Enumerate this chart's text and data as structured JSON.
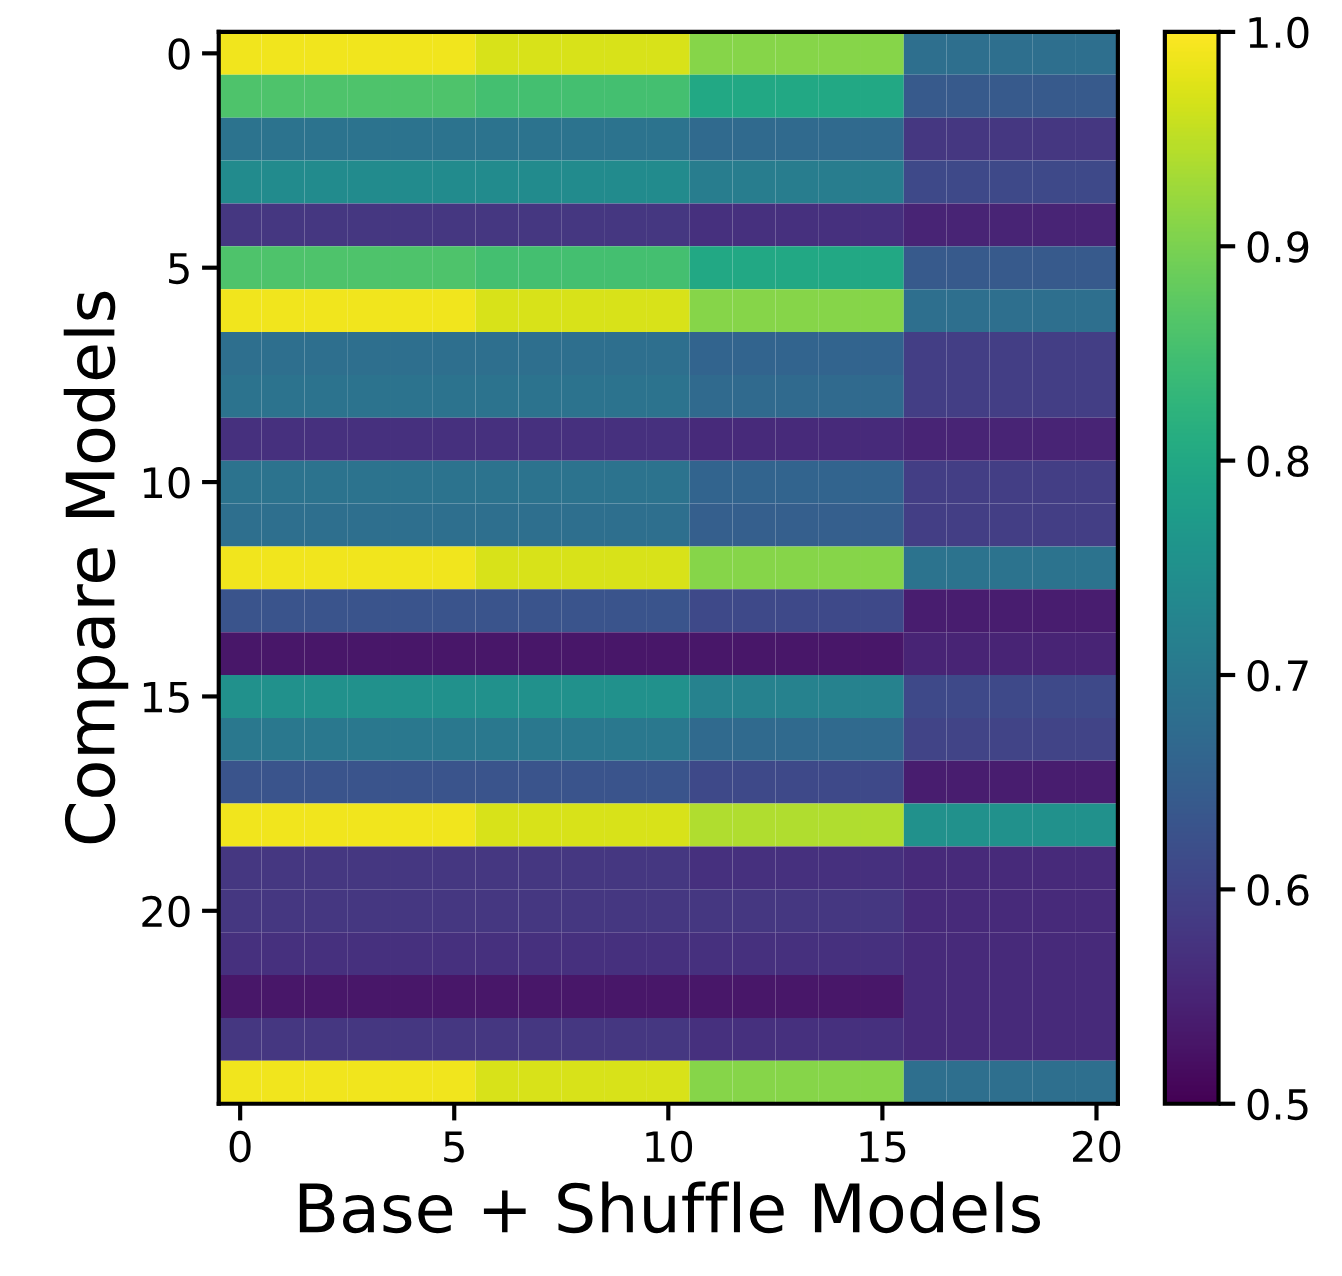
{
  "chart_data": {
    "type": "heatmap",
    "xlabel": "Base + Shuffle Models",
    "ylabel": "Compare Models",
    "categories": [
      "0",
      null,
      null,
      null,
      null,
      "5",
      null,
      null,
      null,
      null,
      "10",
      null,
      null,
      null,
      null,
      "15",
      null,
      null,
      null,
      null,
      "20"
    ],
    "y_categories": [
      "0",
      null,
      null,
      null,
      null,
      "5",
      null,
      null,
      null,
      null,
      "10",
      null,
      null,
      null,
      null,
      "15",
      null,
      null,
      null,
      null,
      "20",
      null,
      null,
      null,
      null
    ],
    "clim": [
      0.5,
      1.0
    ],
    "cticks": [
      0.5,
      0.6,
      0.7,
      0.8,
      0.9,
      {
        "value": 1,
        "label": "1.0"
      }
    ],
    "cells": [
      [
        0.99,
        0.99,
        0.99,
        0.99,
        0.99,
        0.99,
        0.97,
        0.97,
        0.97,
        0.97,
        0.97,
        0.91,
        0.91,
        0.91,
        0.91,
        0.91,
        0.68,
        0.68,
        0.68,
        0.68,
        0.68
      ],
      [
        0.86,
        0.86,
        0.86,
        0.86,
        0.86,
        0.86,
        0.85,
        0.85,
        0.85,
        0.85,
        0.85,
        0.8,
        0.8,
        0.8,
        0.8,
        0.8,
        0.64,
        0.64,
        0.64,
        0.64,
        0.64
      ],
      [
        0.69,
        0.69,
        0.69,
        0.69,
        0.69,
        0.69,
        0.69,
        0.69,
        0.69,
        0.69,
        0.69,
        0.67,
        0.67,
        0.67,
        0.67,
        0.67,
        0.58,
        0.58,
        0.58,
        0.58,
        0.58
      ],
      [
        0.74,
        0.74,
        0.74,
        0.74,
        0.74,
        0.74,
        0.74,
        0.74,
        0.74,
        0.74,
        0.74,
        0.71,
        0.71,
        0.71,
        0.71,
        0.71,
        0.61,
        0.61,
        0.61,
        0.61,
        0.61
      ],
      [
        0.58,
        0.58,
        0.58,
        0.58,
        0.58,
        0.58,
        0.58,
        0.58,
        0.58,
        0.58,
        0.58,
        0.57,
        0.57,
        0.57,
        0.57,
        0.57,
        0.55,
        0.55,
        0.55,
        0.55,
        0.55
      ],
      [
        0.86,
        0.86,
        0.86,
        0.86,
        0.86,
        0.86,
        0.85,
        0.85,
        0.85,
        0.85,
        0.85,
        0.8,
        0.8,
        0.8,
        0.8,
        0.8,
        0.64,
        0.64,
        0.64,
        0.64,
        0.64
      ],
      [
        0.99,
        0.99,
        0.99,
        0.99,
        0.99,
        0.99,
        0.97,
        0.97,
        0.97,
        0.97,
        0.97,
        0.91,
        0.91,
        0.91,
        0.91,
        0.91,
        0.68,
        0.68,
        0.68,
        0.68,
        0.68
      ],
      [
        0.68,
        0.68,
        0.68,
        0.68,
        0.68,
        0.68,
        0.68,
        0.68,
        0.68,
        0.68,
        0.68,
        0.66,
        0.66,
        0.66,
        0.66,
        0.66,
        0.59,
        0.59,
        0.59,
        0.59,
        0.59
      ],
      [
        0.69,
        0.69,
        0.69,
        0.69,
        0.69,
        0.69,
        0.69,
        0.69,
        0.69,
        0.69,
        0.69,
        0.67,
        0.67,
        0.67,
        0.67,
        0.67,
        0.59,
        0.59,
        0.59,
        0.59,
        0.59
      ],
      [
        0.57,
        0.57,
        0.57,
        0.57,
        0.57,
        0.57,
        0.57,
        0.57,
        0.57,
        0.57,
        0.57,
        0.56,
        0.56,
        0.56,
        0.56,
        0.56,
        0.55,
        0.55,
        0.55,
        0.55,
        0.55
      ],
      [
        0.69,
        0.69,
        0.69,
        0.69,
        0.69,
        0.69,
        0.69,
        0.69,
        0.69,
        0.69,
        0.69,
        0.66,
        0.66,
        0.66,
        0.66,
        0.66,
        0.59,
        0.59,
        0.59,
        0.59,
        0.59
      ],
      [
        0.68,
        0.68,
        0.68,
        0.68,
        0.68,
        0.68,
        0.68,
        0.68,
        0.68,
        0.68,
        0.68,
        0.65,
        0.65,
        0.65,
        0.65,
        0.65,
        0.59,
        0.59,
        0.59,
        0.59,
        0.59
      ],
      [
        0.99,
        0.99,
        0.99,
        0.99,
        0.99,
        0.99,
        0.97,
        0.97,
        0.97,
        0.97,
        0.97,
        0.91,
        0.91,
        0.91,
        0.91,
        0.91,
        0.69,
        0.69,
        0.69,
        0.69,
        0.69
      ],
      [
        0.63,
        0.63,
        0.63,
        0.63,
        0.63,
        0.63,
        0.63,
        0.63,
        0.63,
        0.63,
        0.63,
        0.61,
        0.61,
        0.61,
        0.61,
        0.61,
        0.54,
        0.54,
        0.54,
        0.54,
        0.54
      ],
      [
        0.53,
        0.53,
        0.53,
        0.53,
        0.53,
        0.53,
        0.53,
        0.53,
        0.53,
        0.53,
        0.53,
        0.53,
        0.53,
        0.53,
        0.53,
        0.53,
        0.55,
        0.55,
        0.55,
        0.55,
        0.55
      ],
      [
        0.75,
        0.75,
        0.75,
        0.75,
        0.75,
        0.75,
        0.75,
        0.75,
        0.75,
        0.75,
        0.75,
        0.72,
        0.72,
        0.72,
        0.72,
        0.72,
        0.61,
        0.61,
        0.61,
        0.61,
        0.61
      ],
      [
        0.7,
        0.7,
        0.7,
        0.7,
        0.7,
        0.7,
        0.7,
        0.7,
        0.7,
        0.7,
        0.7,
        0.67,
        0.67,
        0.67,
        0.67,
        0.67,
        0.6,
        0.6,
        0.6,
        0.6,
        0.6
      ],
      [
        0.63,
        0.63,
        0.63,
        0.63,
        0.63,
        0.63,
        0.63,
        0.63,
        0.63,
        0.63,
        0.63,
        0.61,
        0.61,
        0.61,
        0.61,
        0.61,
        0.54,
        0.54,
        0.54,
        0.54,
        0.54
      ],
      [
        0.99,
        0.99,
        0.99,
        0.99,
        0.99,
        0.99,
        0.97,
        0.97,
        0.97,
        0.97,
        0.97,
        0.94,
        0.94,
        0.94,
        0.94,
        0.94,
        0.75,
        0.75,
        0.75,
        0.75,
        0.75
      ],
      [
        0.58,
        0.58,
        0.58,
        0.58,
        0.58,
        0.58,
        0.58,
        0.58,
        0.58,
        0.58,
        0.58,
        0.57,
        0.57,
        0.57,
        0.57,
        0.57,
        0.56,
        0.56,
        0.56,
        0.56,
        0.56
      ],
      [
        0.58,
        0.58,
        0.58,
        0.58,
        0.58,
        0.58,
        0.58,
        0.58,
        0.58,
        0.58,
        0.58,
        0.58,
        0.58,
        0.58,
        0.58,
        0.58,
        0.56,
        0.56,
        0.56,
        0.56,
        0.56
      ],
      [
        0.57,
        0.57,
        0.57,
        0.57,
        0.57,
        0.57,
        0.57,
        0.57,
        0.57,
        0.57,
        0.57,
        0.57,
        0.57,
        0.57,
        0.57,
        0.57,
        0.56,
        0.56,
        0.56,
        0.56,
        0.56
      ],
      [
        0.53,
        0.53,
        0.53,
        0.53,
        0.53,
        0.53,
        0.53,
        0.53,
        0.53,
        0.53,
        0.53,
        0.53,
        0.53,
        0.53,
        0.53,
        0.53,
        0.56,
        0.56,
        0.56,
        0.56,
        0.56
      ],
      [
        0.58,
        0.58,
        0.58,
        0.58,
        0.58,
        0.58,
        0.58,
        0.58,
        0.58,
        0.58,
        0.58,
        0.57,
        0.57,
        0.57,
        0.57,
        0.57,
        0.56,
        0.56,
        0.56,
        0.56,
        0.56
      ],
      [
        0.99,
        0.99,
        0.99,
        0.99,
        0.99,
        0.99,
        0.97,
        0.97,
        0.97,
        0.97,
        0.97,
        0.91,
        0.91,
        0.91,
        0.91,
        0.91,
        0.68,
        0.68,
        0.68,
        0.68,
        0.68
      ]
    ]
  }
}
